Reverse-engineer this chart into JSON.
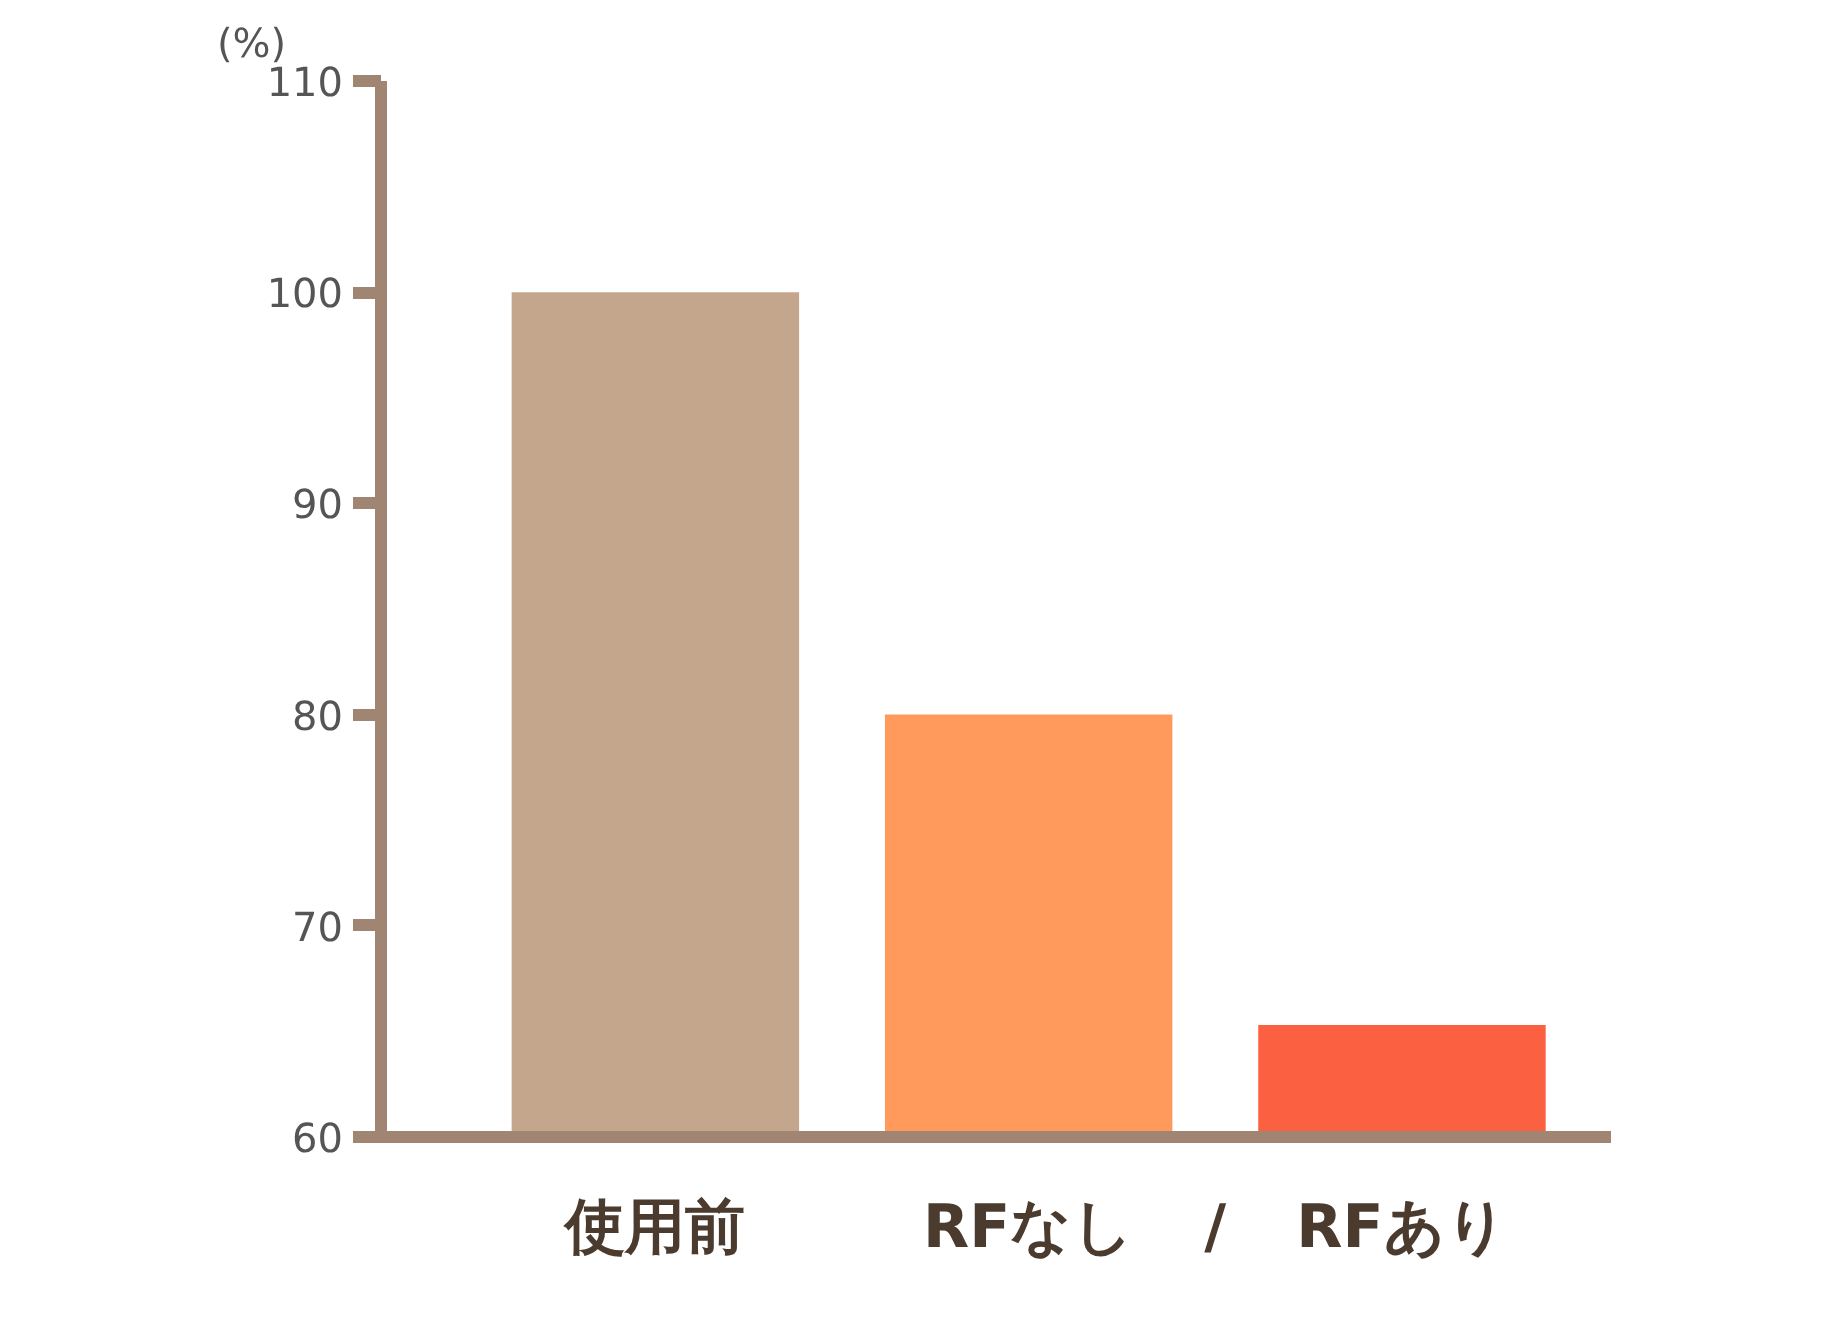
{
  "chart_data": {
    "type": "bar",
    "ylabel": "(%)",
    "categories": [
      "使用前",
      "RFなし",
      "RFあり"
    ],
    "values": [
      100,
      80,
      65.3
    ],
    "colors": [
      "#c4a68c",
      "#ff9a5c",
      "#fb6040"
    ],
    "ylim": [
      60,
      110
    ],
    "yticks": [
      60,
      70,
      80,
      90,
      100,
      110
    ],
    "grid": false,
    "annotations": [
      "/"
    ]
  }
}
